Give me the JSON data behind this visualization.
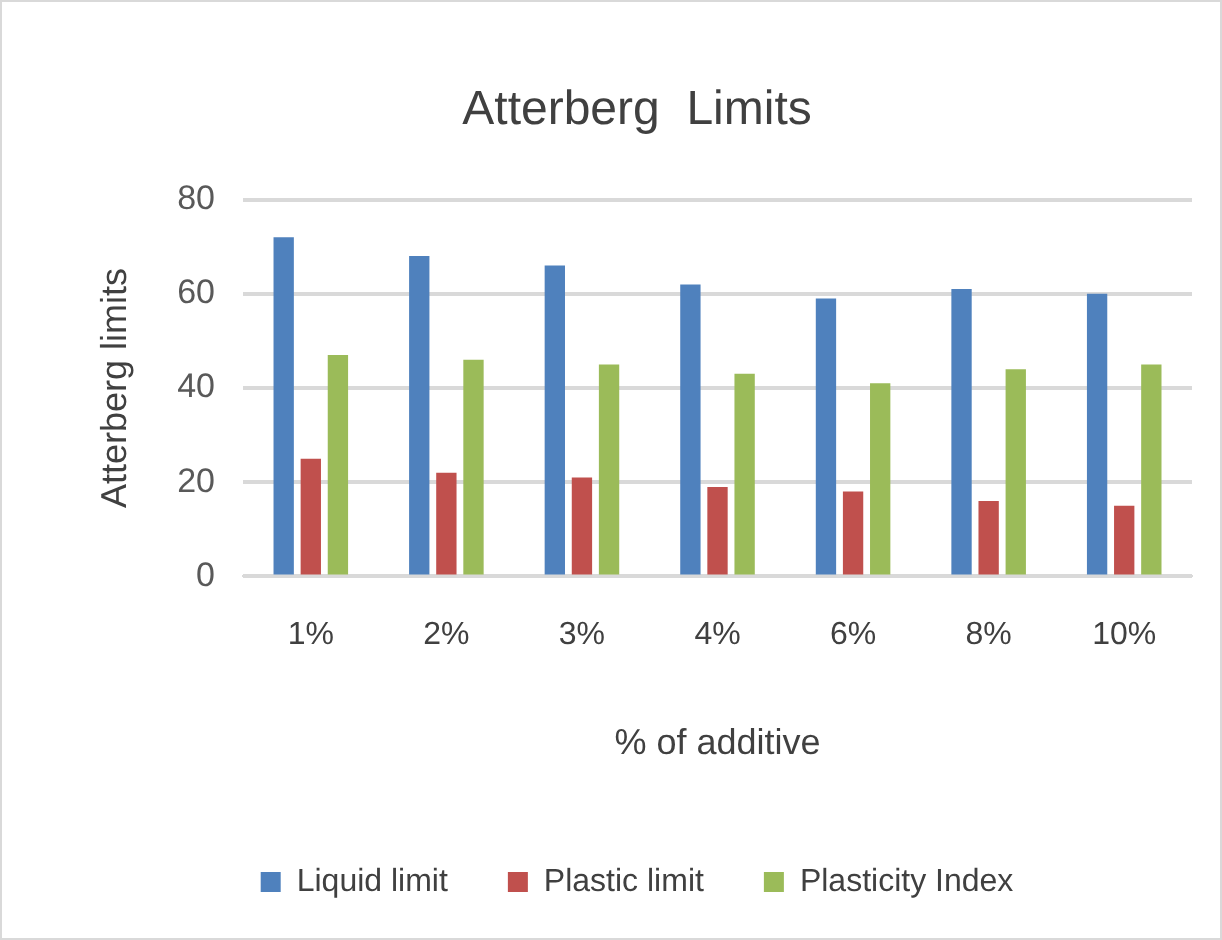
{
  "chart_data": {
    "type": "bar",
    "title": "Atterberg  Limits",
    "xlabel": "% of additive",
    "ylabel": "Atterberg limits",
    "categories": [
      "1%",
      "2%",
      "3%",
      "4%",
      "6%",
      "8%",
      "10%"
    ],
    "series": [
      {
        "name": "Liquid limit",
        "color": "#4f81bd",
        "values": [
          72,
          68,
          66,
          62,
          59,
          61,
          60
        ]
      },
      {
        "name": "Plastic limit",
        "color": "#c0504d",
        "values": [
          25,
          22,
          21,
          19,
          18,
          16,
          15
        ]
      },
      {
        "name": "Plasticity Index",
        "color": "#9bbb59",
        "values": [
          47,
          46,
          45,
          43,
          41,
          44,
          45
        ]
      }
    ],
    "ylim": [
      0,
      80
    ],
    "yticks": [
      0,
      20,
      40,
      60,
      80
    ],
    "grid": "y",
    "legend": "bottom"
  }
}
